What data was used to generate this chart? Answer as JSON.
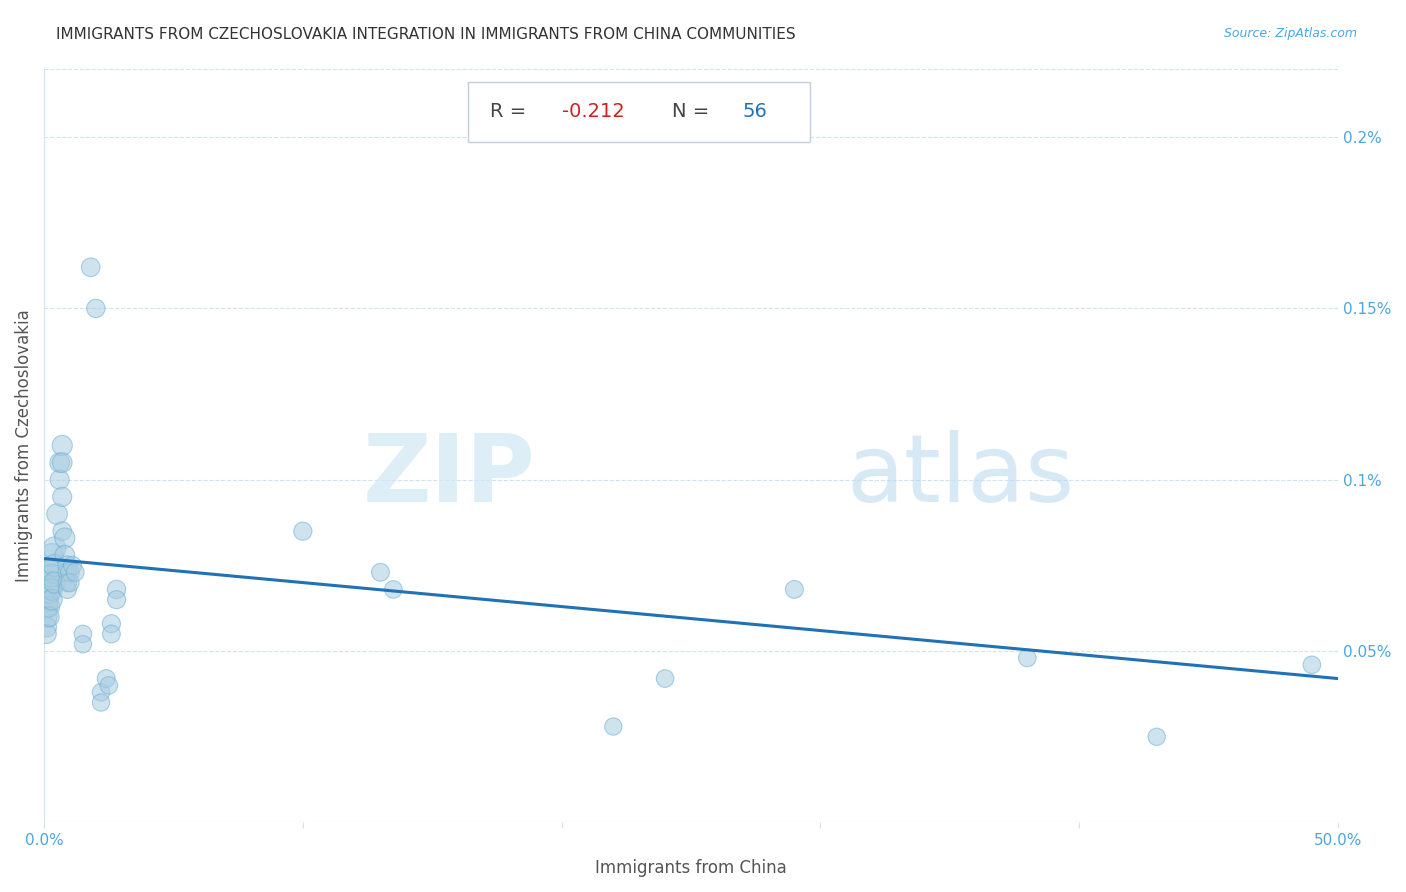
{
  "title": "IMMIGRANTS FROM CZECHOSLOVAKIA INTEGRATION IN IMMIGRANTS FROM CHINA COMMUNITIES",
  "source": "Source: ZipAtlas.com",
  "xlabel": "Immigrants from China",
  "ylabel": "Immigrants from Czechoslovakia",
  "R": -0.212,
  "N": 56,
  "xlim": [
    0.0,
    0.5
  ],
  "ylim": [
    0.0,
    0.22
  ],
  "xticks": [
    0.0,
    0.1,
    0.2,
    0.3,
    0.4,
    0.5
  ],
  "xtick_labels": [
    "0.0%",
    "",
    "",
    "",
    "",
    "50.0%"
  ],
  "ytick_vals": [
    0.05,
    0.1,
    0.15,
    0.2
  ],
  "ytick_labels": [
    "0.05%",
    "0.1%",
    "0.15%",
    "0.2%"
  ],
  "scatter_color": "#a8cce0",
  "scatter_alpha": 0.55,
  "scatter_edgecolor": "#6aadd5",
  "scatter_edgewidth": 0.8,
  "line_color": "#2171b5",
  "line_width": 2.2,
  "title_color": "#333333",
  "axis_label_color": "#555555",
  "tick_label_color": "#4da6e0",
  "grid_color": "#d0e4f0",
  "grid_linestyle": "--",
  "grid_linewidth": 0.8,
  "box_facecolor": "#ffffff",
  "box_edgecolor": "#c0d0e0",
  "R_label_color": "#444444",
  "R_value_color": "#cc2222",
  "N_label_color": "#444444",
  "N_value_color": "#2171b5",
  "watermark_ZIP_color": "#d0e8f5",
  "watermark_atlas_color": "#b8d8f0",
  "points": [
    [
      0.001,
      0.068
    ],
    [
      0.001,
      0.065
    ],
    [
      0.001,
      0.063
    ],
    [
      0.001,
      0.06
    ],
    [
      0.001,
      0.057
    ],
    [
      0.001,
      0.055
    ],
    [
      0.002,
      0.073
    ],
    [
      0.002,
      0.07
    ],
    [
      0.002,
      0.067
    ],
    [
      0.002,
      0.063
    ],
    [
      0.002,
      0.06
    ],
    [
      0.003,
      0.078
    ],
    [
      0.003,
      0.072
    ],
    [
      0.003,
      0.068
    ],
    [
      0.003,
      0.065
    ],
    [
      0.004,
      0.08
    ],
    [
      0.004,
      0.075
    ],
    [
      0.004,
      0.07
    ],
    [
      0.005,
      0.09
    ],
    [
      0.006,
      0.105
    ],
    [
      0.006,
      0.1
    ],
    [
      0.007,
      0.11
    ],
    [
      0.007,
      0.105
    ],
    [
      0.007,
      0.095
    ],
    [
      0.007,
      0.085
    ],
    [
      0.008,
      0.083
    ],
    [
      0.008,
      0.078
    ],
    [
      0.009,
      0.075
    ],
    [
      0.009,
      0.073
    ],
    [
      0.009,
      0.07
    ],
    [
      0.009,
      0.068
    ],
    [
      0.01,
      0.073
    ],
    [
      0.01,
      0.07
    ],
    [
      0.011,
      0.075
    ],
    [
      0.012,
      0.073
    ],
    [
      0.015,
      0.055
    ],
    [
      0.015,
      0.052
    ],
    [
      0.018,
      0.162
    ],
    [
      0.02,
      0.15
    ],
    [
      0.022,
      0.038
    ],
    [
      0.022,
      0.035
    ],
    [
      0.024,
      0.042
    ],
    [
      0.025,
      0.04
    ],
    [
      0.026,
      0.058
    ],
    [
      0.026,
      0.055
    ],
    [
      0.028,
      0.068
    ],
    [
      0.028,
      0.065
    ],
    [
      0.1,
      0.085
    ],
    [
      0.13,
      0.073
    ],
    [
      0.135,
      0.068
    ],
    [
      0.22,
      0.028
    ],
    [
      0.24,
      0.042
    ],
    [
      0.29,
      0.068
    ],
    [
      0.38,
      0.048
    ],
    [
      0.43,
      0.025
    ],
    [
      0.49,
      0.046
    ]
  ],
  "scatter_sizes": [
    350,
    280,
    250,
    220,
    200,
    190,
    300,
    270,
    240,
    220,
    200,
    280,
    260,
    240,
    220,
    270,
    250,
    230,
    220,
    200,
    190,
    210,
    200,
    190,
    180,
    210,
    200,
    190,
    180,
    175,
    170,
    180,
    175,
    170,
    165,
    160,
    155,
    180,
    175,
    160,
    155,
    165,
    160,
    170,
    165,
    175,
    170,
    170,
    165,
    160,
    155,
    160,
    165,
    160,
    155,
    160
  ],
  "line_x_start": 0.0,
  "line_x_end": 0.5,
  "line_y_start": 0.077,
  "line_y_end": 0.042
}
